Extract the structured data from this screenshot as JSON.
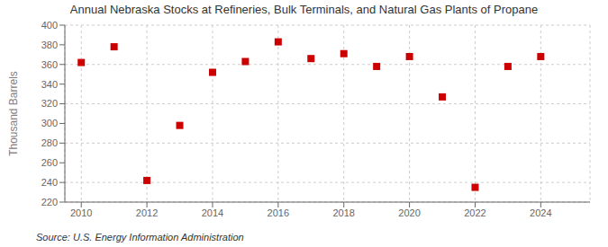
{
  "chart_data": {
    "type": "scatter",
    "title": "Annual Nebraska Stocks at Refineries, Bulk Terminals, and Natural Gas Plants of Propane",
    "ylabel": "Thousand Barrels",
    "annotation": "Source: U.S. Energy Information Administration",
    "x": [
      2010,
      2011,
      2012,
      2013,
      2014,
      2015,
      2016,
      2017,
      2018,
      2019,
      2020,
      2021,
      2022,
      2023,
      2024
    ],
    "values": [
      362,
      378,
      242,
      298,
      352,
      363,
      383,
      366,
      371,
      358,
      368,
      327,
      235,
      358,
      368
    ],
    "color": "#cc0000",
    "marker": "square",
    "xlim": [
      2009.5,
      2025.5
    ],
    "xticks": [
      2010,
      2012,
      2014,
      2016,
      2018,
      2020,
      2022,
      2024
    ],
    "ylim": [
      220,
      400
    ],
    "yticks": [
      220,
      240,
      260,
      280,
      300,
      320,
      340,
      360,
      380,
      400
    ],
    "grid": true
  }
}
